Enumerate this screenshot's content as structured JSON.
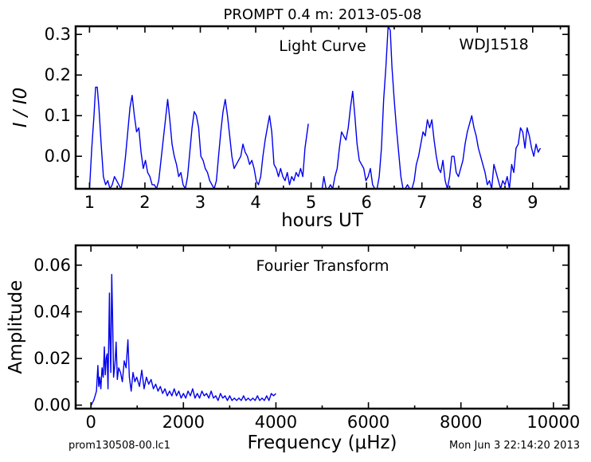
{
  "figure": {
    "title": "PROMPT 0.4 m:  2013-05-08",
    "footer_left": "prom130508-00.lc1",
    "footer_right": "Mon Jun  3 22:14:20 2013"
  },
  "chart_data": [
    {
      "type": "line",
      "annotation": "Light Curve",
      "object_label": "WDJ1518",
      "xlabel": "hours UT",
      "ylabel": "I / I0",
      "xlim": [
        0.75,
        9.65
      ],
      "ylim": [
        -0.08,
        0.32
      ],
      "xticks": [
        1,
        2,
        3,
        4,
        5,
        6,
        7,
        8,
        9
      ],
      "yticks": [
        0.0,
        0.1,
        0.2,
        0.3
      ],
      "ytick_labels": [
        "0.0",
        "0.1",
        "0.2",
        "0.3"
      ],
      "x_minor_step": 0.5,
      "y_minor_step": 0.05,
      "grid": false,
      "segments": [
        {
          "x": [
            1.0,
            1.04,
            1.08,
            1.11,
            1.14,
            1.17,
            1.21,
            1.25,
            1.29,
            1.33,
            1.37,
            1.41,
            1.45,
            1.49,
            1.53,
            1.57,
            1.61,
            1.65,
            1.69,
            1.73,
            1.77,
            1.81,
            1.85,
            1.89,
            1.93,
            1.97,
            2.01,
            2.05,
            2.09,
            2.13,
            2.17,
            2.21,
            2.25,
            2.29,
            2.33,
            2.37,
            2.41,
            2.45,
            2.49,
            2.53,
            2.57,
            2.61,
            2.65,
            2.69,
            2.73,
            2.77,
            2.81,
            2.85,
            2.89,
            2.93,
            2.97,
            3.01,
            3.05,
            3.09,
            3.13,
            3.17,
            3.21,
            3.25,
            3.29,
            3.33,
            3.37,
            3.41,
            3.45,
            3.49,
            3.53,
            3.57,
            3.61,
            3.65,
            3.69,
            3.73,
            3.77,
            3.81,
            3.85,
            3.89,
            3.93,
            3.97,
            4.01,
            4.05,
            4.09,
            4.13,
            4.17,
            4.21,
            4.25,
            4.29,
            4.33,
            4.37,
            4.41,
            4.45,
            4.49,
            4.53,
            4.57,
            4.61,
            4.65,
            4.69,
            4.73,
            4.77,
            4.81,
            4.85,
            4.89,
            4.95
          ],
          "y": [
            -0.08,
            0.02,
            0.1,
            0.17,
            0.17,
            0.12,
            0.03,
            -0.05,
            -0.07,
            -0.06,
            -0.08,
            -0.07,
            -0.05,
            -0.06,
            -0.07,
            -0.08,
            -0.05,
            0.0,
            0.06,
            0.12,
            0.15,
            0.1,
            0.06,
            0.07,
            0.01,
            -0.03,
            -0.01,
            -0.04,
            -0.05,
            -0.07,
            -0.07,
            -0.08,
            -0.06,
            -0.01,
            0.04,
            0.09,
            0.14,
            0.09,
            0.03,
            0.0,
            -0.02,
            -0.05,
            -0.04,
            -0.07,
            -0.08,
            -0.05,
            0.01,
            0.07,
            0.11,
            0.1,
            0.07,
            0.0,
            -0.01,
            -0.03,
            -0.04,
            -0.06,
            -0.07,
            -0.08,
            -0.06,
            0.0,
            0.06,
            0.11,
            0.14,
            0.1,
            0.05,
            0.0,
            -0.03,
            -0.02,
            -0.01,
            0.0,
            0.03,
            0.01,
            0.0,
            -0.02,
            -0.01,
            -0.03,
            -0.06,
            -0.07,
            -0.05,
            0.0,
            0.04,
            0.07,
            0.1,
            0.06,
            -0.02,
            -0.03,
            -0.05,
            -0.03,
            -0.05,
            -0.06,
            -0.04,
            -0.07,
            -0.05,
            -0.06,
            -0.04,
            -0.05,
            -0.03,
            -0.05,
            0.02,
            0.08
          ]
        },
        {
          "x": [
            5.2,
            5.23,
            5.27,
            5.31,
            5.35,
            5.39,
            5.43,
            5.47,
            5.51,
            5.55,
            5.59,
            5.63,
            5.67,
            5.71,
            5.75,
            5.79,
            5.83,
            5.87,
            5.91,
            5.95,
            5.99,
            6.03,
            6.07,
            6.11,
            6.15,
            6.19,
            6.23,
            6.27,
            6.31,
            6.35,
            6.39,
            6.43,
            6.46,
            6.5,
            6.54,
            6.58,
            6.62,
            6.66,
            6.7,
            6.74,
            6.78,
            6.82,
            6.86,
            6.9,
            6.94,
            6.98,
            7.02,
            7.06,
            7.1,
            7.14,
            7.18,
            7.22,
            7.26,
            7.3,
            7.34,
            7.38,
            7.42,
            7.46,
            7.5,
            7.54,
            7.58,
            7.62,
            7.66,
            7.7,
            7.74,
            7.78,
            7.82,
            7.86,
            7.9,
            7.94,
            7.98,
            8.02,
            8.06,
            8.1,
            8.14,
            8.18,
            8.22,
            8.26,
            8.3,
            8.34,
            8.38,
            8.42,
            8.46,
            8.5,
            8.54,
            8.58,
            8.62,
            8.66,
            8.7,
            8.74,
            8.78,
            8.82,
            8.86,
            8.9,
            8.94,
            8.98,
            9.02,
            9.06,
            9.1,
            9.14
          ],
          "y": [
            -0.08,
            -0.05,
            -0.08,
            -0.08,
            -0.07,
            -0.08,
            -0.05,
            -0.03,
            0.02,
            0.06,
            0.05,
            0.04,
            0.07,
            0.12,
            0.16,
            0.1,
            0.03,
            -0.01,
            -0.02,
            -0.03,
            -0.06,
            -0.05,
            -0.03,
            -0.07,
            -0.08,
            -0.08,
            -0.05,
            0.02,
            0.14,
            0.22,
            0.32,
            0.31,
            0.22,
            0.14,
            0.07,
            0.01,
            -0.05,
            -0.08,
            -0.08,
            -0.07,
            -0.08,
            -0.08,
            -0.06,
            -0.02,
            0.0,
            0.03,
            0.06,
            0.05,
            0.09,
            0.07,
            0.09,
            0.04,
            0.0,
            -0.03,
            -0.04,
            -0.01,
            -0.06,
            -0.08,
            -0.05,
            0.0,
            0.0,
            -0.04,
            -0.05,
            -0.03,
            -0.01,
            0.03,
            0.06,
            0.08,
            0.1,
            0.07,
            0.05,
            0.02,
            0.0,
            -0.02,
            -0.04,
            -0.07,
            -0.06,
            -0.08,
            -0.02,
            -0.04,
            -0.06,
            -0.08,
            -0.06,
            -0.07,
            -0.05,
            -0.08,
            -0.02,
            -0.04,
            0.02,
            0.03,
            0.07,
            0.06,
            0.02,
            0.07,
            0.05,
            0.02,
            0.0,
            0.03,
            0.01,
            0.02
          ]
        }
      ]
    },
    {
      "type": "line",
      "annotation": "Fourier Transform",
      "xlabel": "Frequency (μHz)",
      "ylabel": "Amplitude",
      "xlim": [
        -330,
        10330
      ],
      "ylim": [
        -0.0015,
        0.0685
      ],
      "xticks": [
        0,
        2000,
        4000,
        6000,
        8000,
        10000
      ],
      "yticks": [
        0.0,
        0.02,
        0.04,
        0.06
      ],
      "ytick_labels": [
        "0.00",
        "0.02",
        "0.04",
        "0.06"
      ],
      "x_minor_step": 1000,
      "y_minor_step": 0.01,
      "grid": false,
      "peaks": [
        [
          10,
          0.0
        ],
        [
          30,
          0.001
        ],
        [
          60,
          0.002
        ],
        [
          90,
          0.004
        ],
        [
          120,
          0.006
        ],
        [
          150,
          0.017
        ],
        [
          170,
          0.008
        ],
        [
          190,
          0.012
        ],
        [
          215,
          0.007
        ],
        [
          240,
          0.016
        ],
        [
          265,
          0.012
        ],
        [
          290,
          0.025
        ],
        [
          310,
          0.013
        ],
        [
          330,
          0.02
        ],
        [
          350,
          0.022
        ],
        [
          370,
          0.007
        ],
        [
          400,
          0.048
        ],
        [
          410,
          0.03
        ],
        [
          430,
          0.014
        ],
        [
          450,
          0.056
        ],
        [
          470,
          0.035
        ],
        [
          490,
          0.012
        ],
        [
          520,
          0.018
        ],
        [
          545,
          0.027
        ],
        [
          570,
          0.011
        ],
        [
          600,
          0.016
        ],
        [
          640,
          0.014
        ],
        [
          680,
          0.01
        ],
        [
          720,
          0.019
        ],
        [
          760,
          0.016
        ],
        [
          800,
          0.028
        ],
        [
          830,
          0.012
        ],
        [
          870,
          0.006
        ],
        [
          910,
          0.014
        ],
        [
          950,
          0.01
        ],
        [
          990,
          0.012
        ],
        [
          1050,
          0.008
        ],
        [
          1100,
          0.015
        ],
        [
          1150,
          0.007
        ],
        [
          1200,
          0.012
        ],
        [
          1250,
          0.009
        ],
        [
          1300,
          0.011
        ],
        [
          1350,
          0.007
        ],
        [
          1400,
          0.009
        ],
        [
          1450,
          0.006
        ],
        [
          1500,
          0.008
        ],
        [
          1550,
          0.005
        ],
        [
          1600,
          0.007
        ],
        [
          1650,
          0.004
        ],
        [
          1700,
          0.006
        ],
        [
          1750,
          0.004
        ],
        [
          1800,
          0.007
        ],
        [
          1850,
          0.004
        ],
        [
          1900,
          0.006
        ],
        [
          1950,
          0.003
        ],
        [
          2000,
          0.005
        ],
        [
          2050,
          0.003
        ],
        [
          2100,
          0.006
        ],
        [
          2150,
          0.004
        ],
        [
          2200,
          0.007
        ],
        [
          2250,
          0.003
        ],
        [
          2300,
          0.005
        ],
        [
          2350,
          0.003
        ],
        [
          2400,
          0.006
        ],
        [
          2450,
          0.004
        ],
        [
          2500,
          0.005
        ],
        [
          2550,
          0.003
        ],
        [
          2600,
          0.006
        ],
        [
          2650,
          0.003
        ],
        [
          2700,
          0.004
        ],
        [
          2750,
          0.002
        ],
        [
          2800,
          0.005
        ],
        [
          2850,
          0.003
        ],
        [
          2900,
          0.004
        ],
        [
          2950,
          0.002
        ],
        [
          3000,
          0.004
        ],
        [
          3050,
          0.002
        ],
        [
          3100,
          0.003
        ],
        [
          3150,
          0.002
        ],
        [
          3200,
          0.003
        ],
        [
          3250,
          0.002
        ],
        [
          3300,
          0.004
        ],
        [
          3350,
          0.002
        ],
        [
          3400,
          0.003
        ],
        [
          3450,
          0.002
        ],
        [
          3500,
          0.003
        ],
        [
          3550,
          0.002
        ],
        [
          3600,
          0.004
        ],
        [
          3650,
          0.002
        ],
        [
          3700,
          0.003
        ],
        [
          3750,
          0.002
        ],
        [
          3800,
          0.004
        ],
        [
          3850,
          0.002
        ],
        [
          3900,
          0.005
        ],
        [
          3950,
          0.004
        ],
        [
          4000,
          0.005
        ]
      ]
    }
  ]
}
